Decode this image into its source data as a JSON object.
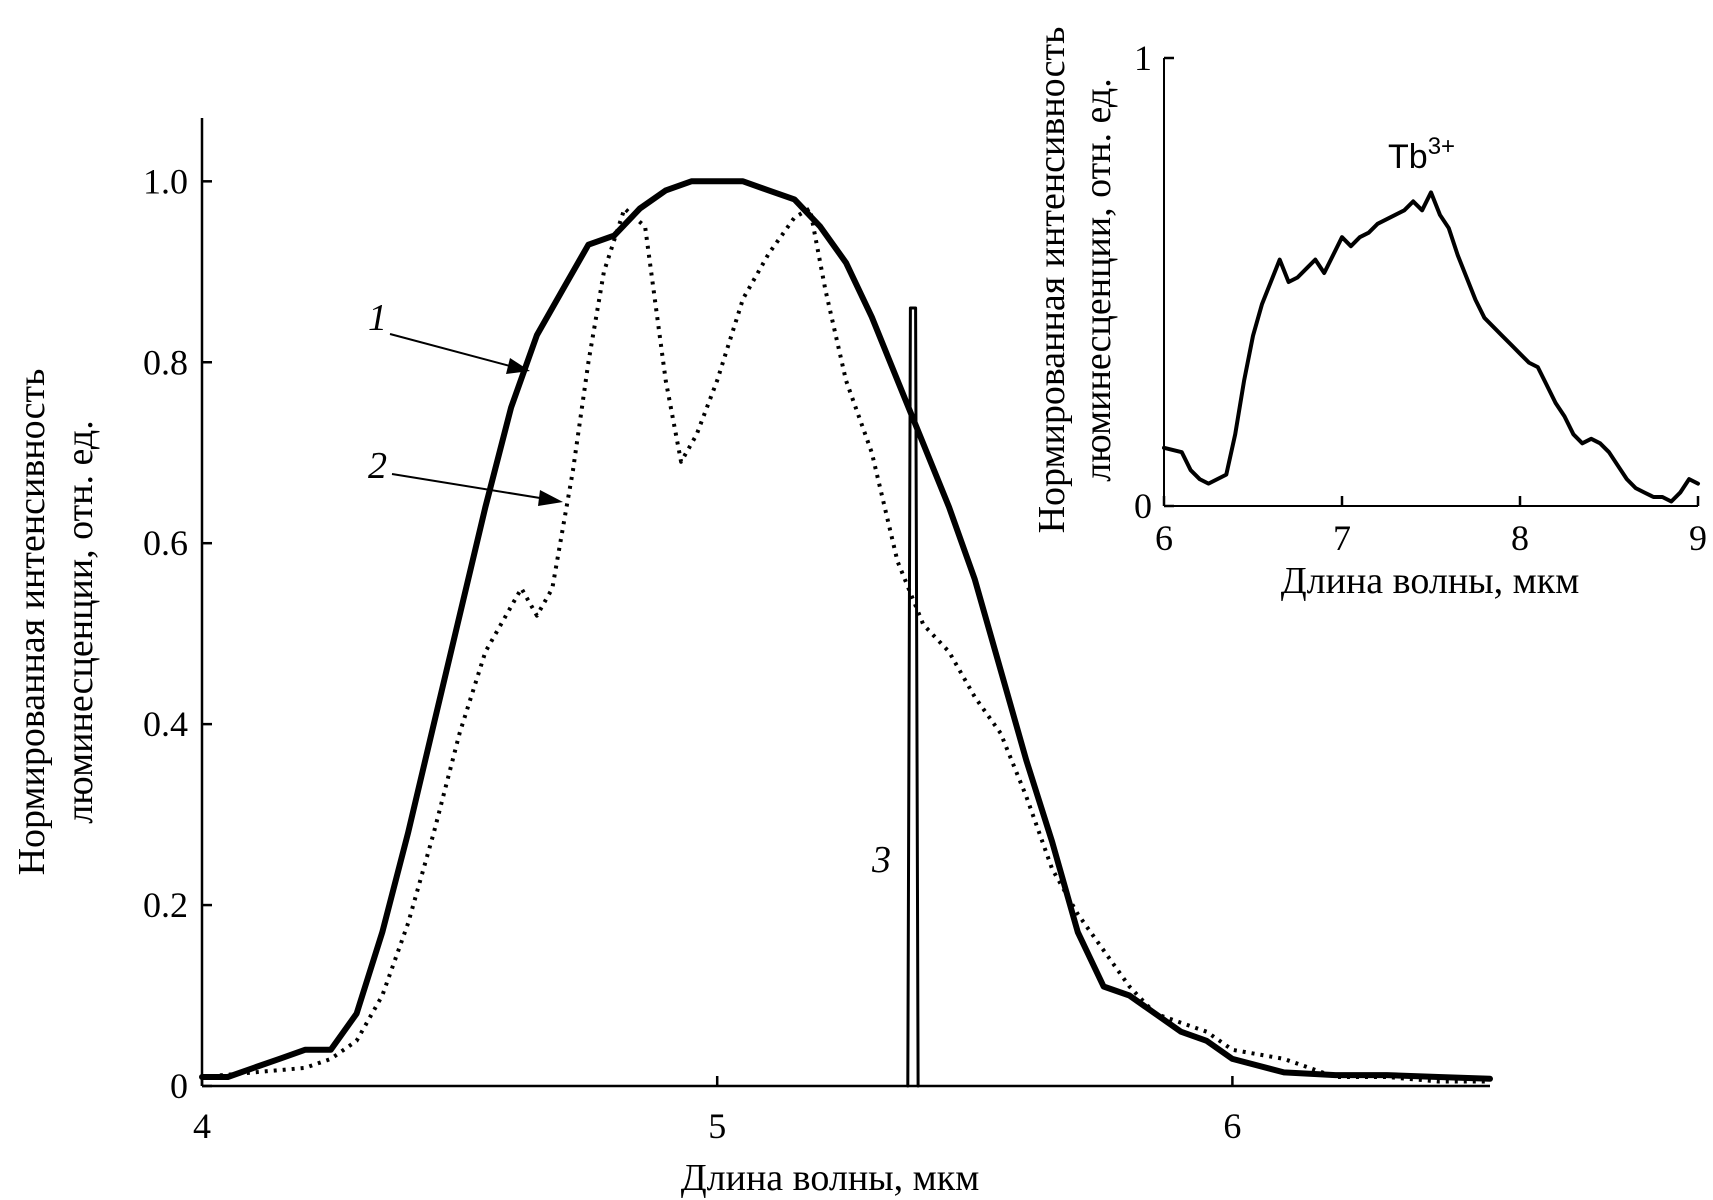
{
  "chart_data": [
    {
      "type": "line",
      "xlabel": "Длина волны, мкм",
      "ylabel_line1": "Нормированная интенсивность",
      "ylabel_line2": "люминесценции, отн. ед.",
      "xlim": [
        4,
        6.5
      ],
      "ylim": [
        0,
        1.07
      ],
      "x_ticks": [
        4,
        5,
        6
      ],
      "x_tick_labels": [
        "4",
        "5",
        "6"
      ],
      "y_ticks": [
        0,
        0.2,
        0.4,
        0.6,
        0.8,
        1.0
      ],
      "y_tick_labels": [
        "0",
        "0.2",
        "0.4",
        "0.6",
        "0.8",
        "1.0"
      ],
      "grid": false,
      "series": [
        {
          "label": "1",
          "style": "solid-thick",
          "x": [
            4.0,
            4.05,
            4.1,
            4.15,
            4.2,
            4.25,
            4.3,
            4.35,
            4.4,
            4.45,
            4.5,
            4.55,
            4.6,
            4.65,
            4.7,
            4.75,
            4.8,
            4.85,
            4.9,
            4.95,
            5.0,
            5.05,
            5.1,
            5.15,
            5.2,
            5.25,
            5.3,
            5.35,
            5.4,
            5.45,
            5.5,
            5.55,
            5.6,
            5.65,
            5.7,
            5.75,
            5.8,
            5.85,
            5.9,
            5.95,
            6.0,
            6.1,
            6.2,
            6.3,
            6.4,
            6.5
          ],
          "y": [
            0.01,
            0.01,
            0.02,
            0.03,
            0.04,
            0.04,
            0.08,
            0.17,
            0.28,
            0.4,
            0.52,
            0.64,
            0.75,
            0.83,
            0.88,
            0.93,
            0.94,
            0.97,
            0.99,
            1.0,
            1.0,
            1.0,
            0.99,
            0.98,
            0.95,
            0.91,
            0.85,
            0.78,
            0.71,
            0.64,
            0.56,
            0.46,
            0.36,
            0.27,
            0.17,
            0.11,
            0.1,
            0.08,
            0.06,
            0.05,
            0.03,
            0.015,
            0.012,
            0.012,
            0.01,
            0.008
          ]
        },
        {
          "label": "2",
          "style": "dotted",
          "x": [
            4.0,
            4.1,
            4.2,
            4.25,
            4.3,
            4.35,
            4.4,
            4.45,
            4.5,
            4.55,
            4.6,
            4.62,
            4.65,
            4.68,
            4.72,
            4.75,
            4.78,
            4.82,
            4.86,
            4.9,
            4.93,
            4.96,
            5.0,
            5.05,
            5.1,
            5.15,
            5.18,
            5.21,
            5.25,
            5.3,
            5.35,
            5.4,
            5.45,
            5.5,
            5.55,
            5.6,
            5.65,
            5.7,
            5.75,
            5.8,
            5.85,
            5.9,
            5.95,
            6.0,
            6.1,
            6.2,
            6.3,
            6.4,
            6.5
          ],
          "y": [
            0.01,
            0.015,
            0.02,
            0.03,
            0.05,
            0.1,
            0.18,
            0.28,
            0.39,
            0.48,
            0.53,
            0.55,
            0.52,
            0.55,
            0.68,
            0.8,
            0.9,
            0.97,
            0.95,
            0.78,
            0.69,
            0.72,
            0.78,
            0.87,
            0.92,
            0.96,
            0.97,
            0.88,
            0.78,
            0.7,
            0.58,
            0.51,
            0.48,
            0.43,
            0.39,
            0.32,
            0.24,
            0.19,
            0.15,
            0.11,
            0.08,
            0.07,
            0.06,
            0.04,
            0.03,
            0.01,
            0.01,
            0.005,
            0.005
          ]
        },
        {
          "label": "3",
          "style": "solid-thin",
          "x": [
            5.37,
            5.375,
            5.38,
            5.385,
            5.39
          ],
          "y": [
            0,
            0.86,
            0.86,
            0.86,
            0
          ]
        }
      ]
    },
    {
      "type": "line",
      "xlabel": "Длина волны, мкм",
      "ylabel_line1": "Нормированная интенсивность",
      "ylabel_line2": "люминесценции, отн. ед.",
      "xlim": [
        6,
        9
      ],
      "ylim": [
        0,
        1
      ],
      "x_ticks": [
        6,
        7,
        8,
        9
      ],
      "x_tick_labels": [
        "6",
        "7",
        "8",
        "9"
      ],
      "y_ticks": [
        0,
        1
      ],
      "y_tick_labels": [
        "0",
        "1"
      ],
      "grid": false,
      "annotation_base": "Tb",
      "annotation_sup": "3+",
      "series": [
        {
          "style": "solid",
          "x": [
            6.0,
            6.1,
            6.15,
            6.2,
            6.25,
            6.3,
            6.35,
            6.4,
            6.45,
            6.5,
            6.55,
            6.6,
            6.65,
            6.7,
            6.75,
            6.8,
            6.85,
            6.9,
            6.95,
            7.0,
            7.05,
            7.1,
            7.15,
            7.2,
            7.25,
            7.3,
            7.35,
            7.4,
            7.45,
            7.5,
            7.55,
            7.6,
            7.65,
            7.7,
            7.75,
            7.8,
            7.85,
            7.9,
            7.95,
            8.0,
            8.05,
            8.1,
            8.15,
            8.2,
            8.25,
            8.3,
            8.35,
            8.4,
            8.45,
            8.5,
            8.55,
            8.6,
            8.65,
            8.7,
            8.75,
            8.8,
            8.85,
            8.9,
            8.95,
            9.0
          ],
          "y": [
            0.13,
            0.12,
            0.08,
            0.06,
            0.05,
            0.06,
            0.07,
            0.16,
            0.28,
            0.38,
            0.45,
            0.5,
            0.55,
            0.5,
            0.51,
            0.53,
            0.55,
            0.52,
            0.56,
            0.6,
            0.58,
            0.6,
            0.61,
            0.63,
            0.64,
            0.65,
            0.66,
            0.68,
            0.66,
            0.7,
            0.65,
            0.62,
            0.56,
            0.51,
            0.46,
            0.42,
            0.4,
            0.38,
            0.36,
            0.34,
            0.32,
            0.31,
            0.27,
            0.23,
            0.2,
            0.16,
            0.14,
            0.15,
            0.14,
            0.12,
            0.09,
            0.06,
            0.04,
            0.03,
            0.02,
            0.02,
            0.01,
            0.03,
            0.06,
            0.05
          ]
        }
      ]
    }
  ]
}
